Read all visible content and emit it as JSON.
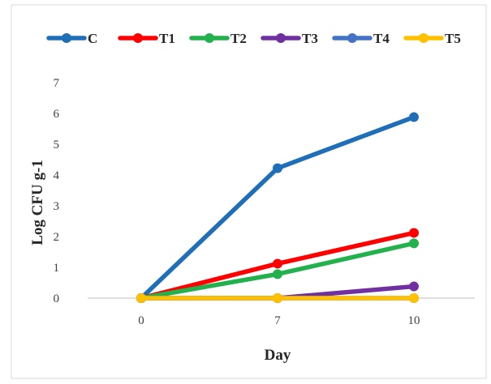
{
  "chart_data": {
    "type": "line",
    "title": "",
    "xlabel": "Day",
    "ylabel": "Log CFU g-1",
    "categories": [
      "0",
      "7",
      "10"
    ],
    "ylim": [
      0,
      7
    ],
    "yticks": [
      "0",
      "1",
      "2",
      "3",
      "4",
      "5",
      "6",
      "7"
    ],
    "grid": false,
    "legend_position": "top",
    "series": [
      {
        "name": "C",
        "color": "#1f6fb8",
        "values": [
          0,
          4.22,
          5.88
        ]
      },
      {
        "name": "T1",
        "color": "#ff0000",
        "values": [
          0,
          1.12,
          2.12
        ]
      },
      {
        "name": "T2",
        "color": "#22b14c",
        "values": [
          0,
          0.78,
          1.78
        ]
      },
      {
        "name": "T3",
        "color": "#7030a0",
        "values": [
          0,
          0,
          0.38
        ]
      },
      {
        "name": "T4",
        "color": "#4472c4",
        "values": [
          0,
          0,
          0
        ]
      },
      {
        "name": "T5",
        "color": "#ffc000",
        "values": [
          0,
          0,
          0
        ]
      }
    ]
  }
}
